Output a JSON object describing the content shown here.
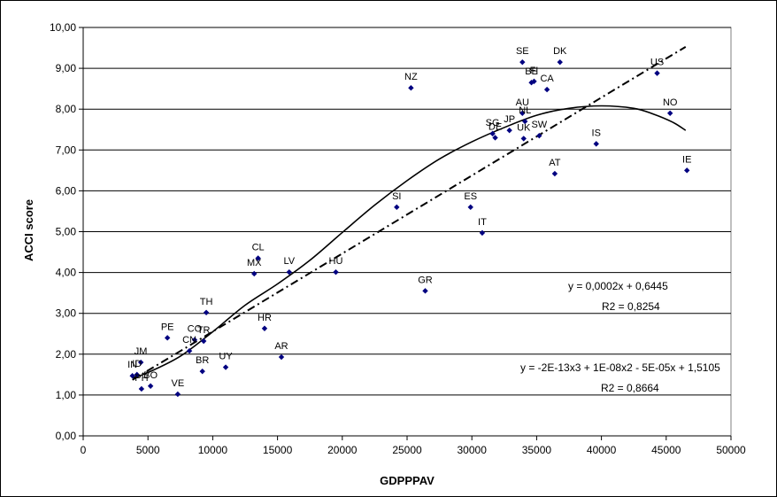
{
  "chart_data": {
    "type": "scatter",
    "xlabel": "GDPPPAV",
    "ylabel": "ACCI score",
    "xlim": [
      0,
      50000
    ],
    "ylim": [
      0,
      10
    ],
    "x_ticks": [
      "0",
      "5000",
      "10000",
      "15000",
      "20000",
      "25000",
      "30000",
      "35000",
      "40000",
      "45000",
      "50000"
    ],
    "y_ticks": [
      "0,00",
      "1,00",
      "2,00",
      "3,00",
      "4,00",
      "5,00",
      "6,00",
      "7,00",
      "8,00",
      "9,00",
      "10,00"
    ],
    "grid": "horizontal",
    "point_color": "#000080",
    "points": [
      {
        "label": "IN",
        "x": 3800,
        "y": 1.47
      },
      {
        "label": "ID",
        "x": 4150,
        "y": 1.5
      },
      {
        "label": "JM",
        "x": 4450,
        "y": 1.8
      },
      {
        "label": "PH",
        "x": 4500,
        "y": 1.15
      },
      {
        "label": "BO",
        "x": 5200,
        "y": 1.22
      },
      {
        "label": "VE",
        "x": 7300,
        "y": 1.02
      },
      {
        "label": "PE",
        "x": 6500,
        "y": 2.4
      },
      {
        "label": "CN",
        "x": 8200,
        "y": 2.08
      },
      {
        "label": "CO",
        "x": 8600,
        "y": 2.35
      },
      {
        "label": "TR",
        "x": 9300,
        "y": 2.32
      },
      {
        "label": "TH",
        "x": 9500,
        "y": 3.02
      },
      {
        "label": "BR",
        "x": 9200,
        "y": 1.58
      },
      {
        "label": "UY",
        "x": 11000,
        "y": 1.68
      },
      {
        "label": "MX",
        "x": 13200,
        "y": 3.97
      },
      {
        "label": "CL",
        "x": 13500,
        "y": 4.35
      },
      {
        "label": "HR",
        "x": 14000,
        "y": 2.63
      },
      {
        "label": "AR",
        "x": 15300,
        "y": 1.93
      },
      {
        "label": "LV",
        "x": 15900,
        "y": 4.01
      },
      {
        "label": "HU",
        "x": 19500,
        "y": 4.01
      },
      {
        "label": "SI",
        "x": 24200,
        "y": 5.6
      },
      {
        "label": "NZ",
        "x": 25300,
        "y": 8.52
      },
      {
        "label": "GR",
        "x": 26400,
        "y": 3.55
      },
      {
        "label": "ES",
        "x": 29900,
        "y": 5.6
      },
      {
        "label": "IT",
        "x": 30800,
        "y": 4.97
      },
      {
        "label": "DE",
        "x": 31800,
        "y": 7.3
      },
      {
        "label": "SG",
        "x": 31600,
        "y": 7.4
      },
      {
        "label": "JP",
        "x": 32900,
        "y": 7.48
      },
      {
        "label": "UK",
        "x": 34000,
        "y": 7.28
      },
      {
        "label": "SW",
        "x": 35200,
        "y": 7.35
      },
      {
        "label": "NL",
        "x": 34100,
        "y": 7.7
      },
      {
        "label": "AU",
        "x": 33900,
        "y": 7.9
      },
      {
        "label": "SE",
        "x": 33900,
        "y": 9.15
      },
      {
        "label": "BE",
        "x": 34600,
        "y": 8.65
      },
      {
        "label": "FI",
        "x": 34800,
        "y": 8.68
      },
      {
        "label": "CA",
        "x": 35800,
        "y": 8.48
      },
      {
        "label": "DK",
        "x": 36800,
        "y": 9.15
      },
      {
        "label": "AT",
        "x": 36400,
        "y": 6.42
      },
      {
        "label": "IS",
        "x": 39600,
        "y": 7.15
      },
      {
        "label": "US",
        "x": 44300,
        "y": 8.88
      },
      {
        "label": "NO",
        "x": 45300,
        "y": 7.9
      },
      {
        "label": "IE",
        "x": 46600,
        "y": 6.5
      }
    ],
    "linear_trend": {
      "equation": "y = 0,0002x + 0,6445",
      "r2": "R2 = 0,8254",
      "coef": [
        0.000191,
        0.6445
      ],
      "x_range": [
        3800,
        46500
      ]
    },
    "poly_trend": {
      "equation": "y = -2E-13x3 + 1E-08x2 - 5E-05x + 1,5105",
      "r2": "R2 = 0,8664",
      "x_range": [
        3800,
        46500
      ],
      "curve": [
        [
          3800,
          1.42
        ],
        [
          5000,
          1.55
        ],
        [
          7500,
          1.95
        ],
        [
          10000,
          2.55
        ],
        [
          12500,
          3.2
        ],
        [
          15000,
          3.72
        ],
        [
          17500,
          4.3
        ],
        [
          20000,
          4.98
        ],
        [
          22500,
          5.65
        ],
        [
          25000,
          6.25
        ],
        [
          27500,
          6.78
        ],
        [
          30000,
          7.2
        ],
        [
          32500,
          7.55
        ],
        [
          35000,
          7.85
        ],
        [
          37500,
          8.02
        ],
        [
          40000,
          8.08
        ],
        [
          42500,
          8.02
        ],
        [
          44000,
          7.88
        ],
        [
          45500,
          7.68
        ],
        [
          46500,
          7.48
        ]
      ]
    }
  }
}
